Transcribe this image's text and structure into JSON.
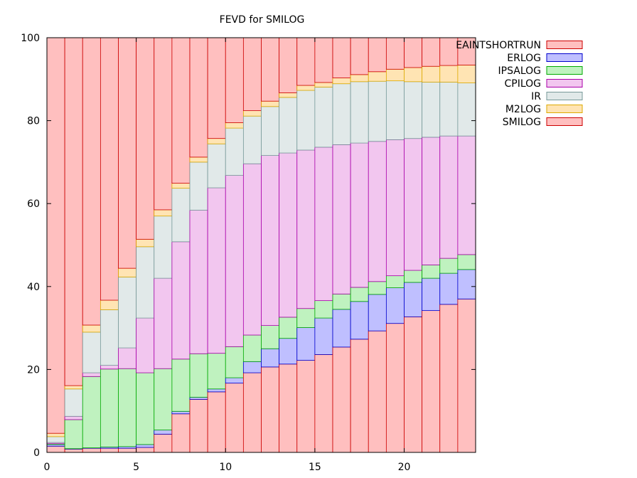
{
  "chart_data": {
    "type": "bar",
    "stacked": true,
    "title": "FEVD for SMILOG",
    "xlabel": "",
    "ylabel": "",
    "xlim": [
      0,
      24
    ],
    "ylim": [
      0,
      100
    ],
    "xticks": [
      "0",
      "5",
      "10",
      "15",
      "20"
    ],
    "yticks": [
      "0",
      "20",
      "40",
      "60",
      "80",
      "100"
    ],
    "grid": false,
    "legend_position": "right",
    "x": [
      0,
      1,
      2,
      3,
      4,
      5,
      6,
      7,
      8,
      9,
      10,
      11,
      12,
      13,
      14,
      15,
      16,
      17,
      18,
      19,
      20,
      21,
      22,
      23
    ],
    "series": [
      {
        "name": "SMILOG",
        "fill": "#ffbfbf",
        "stroke": "#cc0000",
        "values": [
          1.5,
          0.8,
          1.0,
          1.0,
          1.0,
          1.2,
          4.4,
          9.3,
          12.8,
          14.6,
          16.7,
          19.2,
          20.6,
          21.3,
          22.2,
          23.6,
          25.4,
          27.3,
          29.3,
          31.1,
          32.7,
          34.2,
          35.7,
          37.0
        ]
      },
      {
        "name": "ERLOG",
        "fill": "#bfbfff",
        "stroke": "#0000cc",
        "values": [
          0.4,
          0.1,
          0.1,
          0.3,
          0.4,
          0.7,
          1.0,
          0.6,
          0.5,
          0.7,
          1.3,
          2.7,
          4.4,
          6.2,
          7.9,
          8.8,
          9.1,
          9.1,
          8.8,
          8.6,
          8.3,
          7.8,
          7.5,
          7.1
        ]
      },
      {
        "name": "IPSALOG",
        "fill": "#bff2bf",
        "stroke": "#00aa00",
        "values": [
          0.2,
          7.0,
          17.2,
          18.8,
          18.8,
          17.3,
          14.8,
          12.6,
          10.5,
          8.6,
          7.5,
          6.4,
          5.6,
          5.1,
          4.6,
          4.2,
          3.7,
          3.4,
          3.1,
          2.9,
          2.9,
          3.2,
          3.6,
          3.6
        ]
      },
      {
        "name": "CPILOG",
        "fill": "#f2c6ef",
        "stroke": "#aa00aa",
        "values": [
          0.3,
          0.8,
          0.9,
          0.9,
          5.0,
          13.2,
          21.8,
          28.3,
          34.6,
          39.9,
          41.3,
          41.3,
          41.0,
          39.6,
          38.2,
          37.0,
          36.0,
          34.8,
          33.8,
          32.8,
          31.8,
          30.8,
          29.5,
          28.6
        ]
      },
      {
        "name": "IR",
        "fill": "#e1e9e9",
        "stroke": "#779999",
        "values": [
          1.4,
          6.6,
          9.8,
          13.4,
          17.1,
          17.2,
          15.0,
          12.9,
          11.6,
          10.6,
          11.4,
          11.5,
          11.8,
          13.4,
          14.4,
          14.5,
          14.7,
          14.8,
          14.5,
          14.2,
          13.7,
          13.3,
          13.0,
          12.8
        ]
      },
      {
        "name": "M2LOG",
        "fill": "#ffe4b3",
        "stroke": "#ddaa00",
        "values": [
          0.8,
          0.8,
          1.7,
          2.3,
          2.1,
          1.8,
          1.5,
          1.2,
          1.2,
          1.3,
          1.3,
          1.3,
          1.3,
          1.1,
          1.2,
          1.1,
          1.4,
          1.7,
          2.3,
          2.8,
          3.4,
          3.8,
          4.0,
          4.3
        ]
      },
      {
        "name": "EAINTSHORTRUN",
        "fill": "#ffbfbf",
        "stroke": "#cc0000",
        "values": [
          95.4,
          83.9,
          69.3,
          63.3,
          55.6,
          48.6,
          41.5,
          35.1,
          28.8,
          24.3,
          20.5,
          17.6,
          15.3,
          13.3,
          11.5,
          10.8,
          9.7,
          8.9,
          8.2,
          7.6,
          7.2,
          6.9,
          6.7,
          6.6
        ]
      }
    ],
    "legend_order": [
      "EAINTSHORTRUN",
      "ERLOG",
      "IPSALOG",
      "CPILOG",
      "IR",
      "M2LOG",
      "SMILOG"
    ]
  }
}
